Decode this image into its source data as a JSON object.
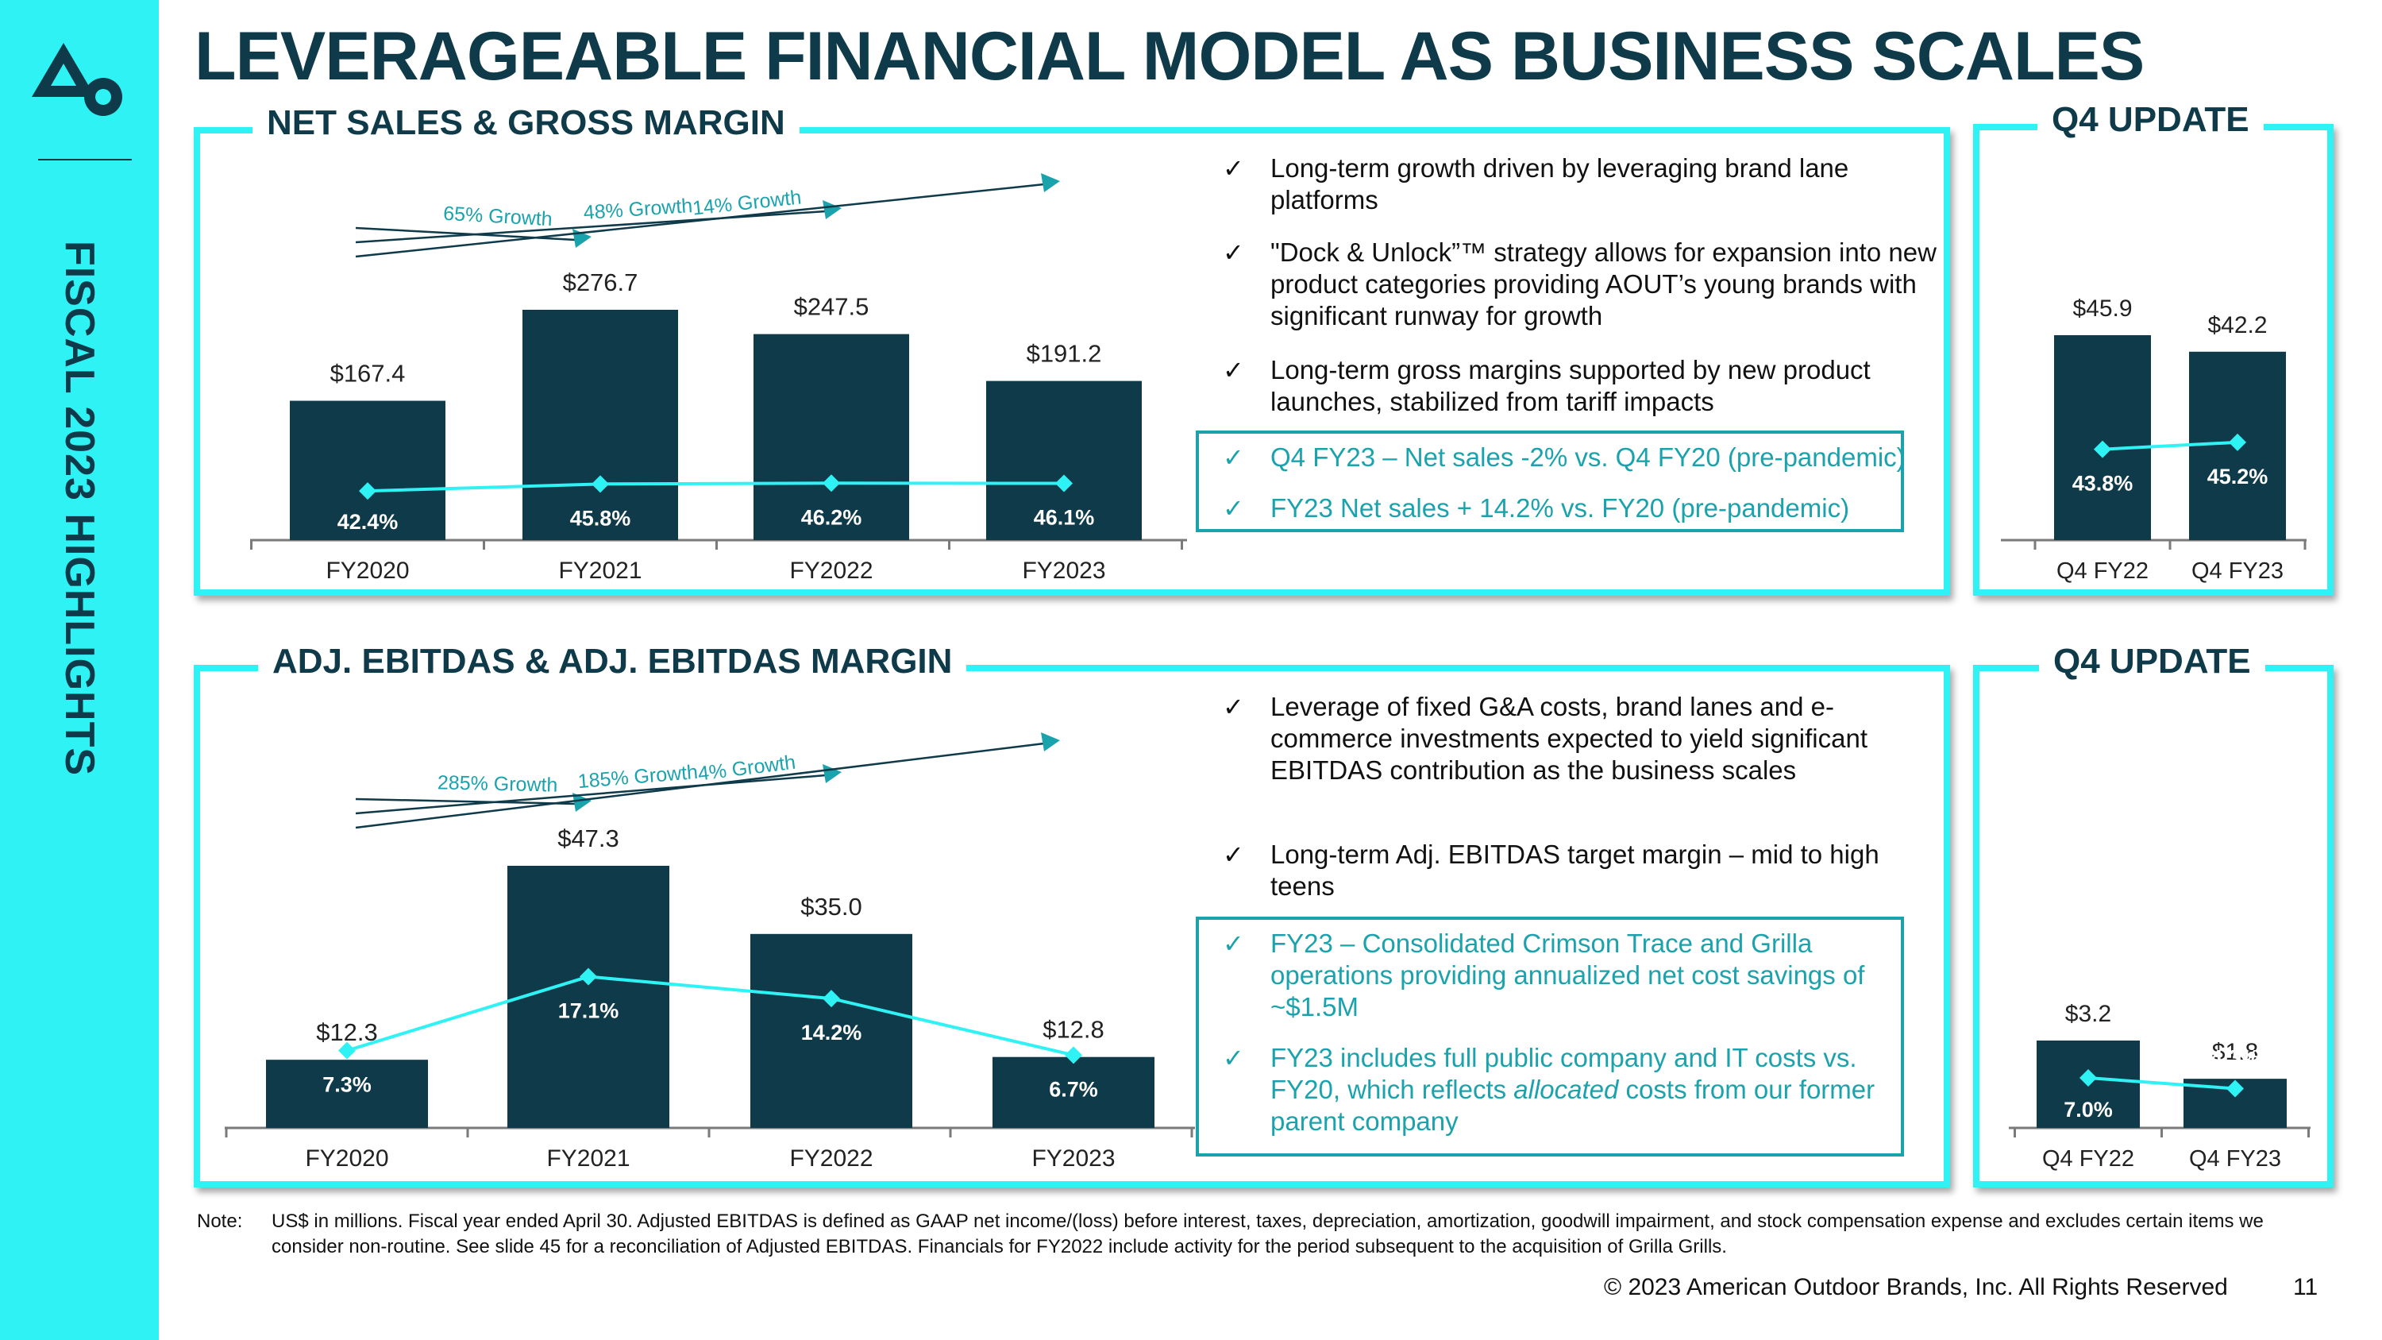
{
  "title": "LEVERAGEABLE FINANCIAL MODEL AS BUSINESS SCALES",
  "sidebar_title": "FISCAL 2023 HIGHLIGHTS",
  "colors": {
    "cyan": "#2ff2f5",
    "navy": "#0e3a4a",
    "teal": "#1aa3ad"
  },
  "panels": {
    "net_sales": "NET SALES & GROSS MARGIN",
    "ebitdas": "ADJ. EBITDAS & ADJ. EBITDAS MARGIN",
    "q4_top": "Q4 UPDATE",
    "q4_bottom": "Q4 UPDATE"
  },
  "bullets_top": [
    "Long-term growth driven by leveraging brand lane platforms",
    "\"Dock & Unlock”™ strategy allows for expansion into new product categories providing AOUT’s young brands with significant runway for growth",
    "Long-term gross margins supported by new product launches, stabilized from tariff impacts"
  ],
  "callout_top": [
    "Q4 FY23 – Net sales -2% vs. Q4 FY20 (pre-pandemic)",
    "FY23 Net sales + 14.2% vs. FY20 (pre-pandemic)"
  ],
  "bullets_bottom": [
    "Leverage of fixed G&A costs, brand lanes and e-commerce investments expected to yield significant EBITDAS contribution as the business scales",
    "Long-term Adj. EBITDAS target margin – mid to high teens"
  ],
  "callout_bottom": [
    "FY23 – Consolidated Crimson Trace and Grilla operations providing annualized net cost savings of ~$1.5M",
    "FY23 includes full public company and IT costs vs. FY20, which reflects allocated costs from our former parent company"
  ],
  "note_label": "Note:",
  "note_text": "US$ in millions. Fiscal year ended April 30. Adjusted EBITDAS is defined as GAAP net income/(loss) before interest, taxes, depreciation, amortization, goodwill impairment, and stock compensation expense and excludes certain items we consider non-routine. See slide 45 for a reconciliation of Adjusted EBITDAS. Financials for FY2022 include activity for the period subsequent to the acquisition of Grilla Grills.",
  "copyright": "© 2023 American Outdoor Brands, Inc. All Rights Reserved",
  "page_number": "11",
  "chart_data": [
    {
      "type": "bar",
      "id": "net_sales",
      "title": "NET SALES & GROSS MARGIN",
      "categories": [
        "FY2020",
        "FY2021",
        "FY2022",
        "FY2023"
      ],
      "series": [
        {
          "name": "Net sales",
          "values": [
            167.4,
            276.7,
            247.5,
            191.2
          ],
          "labels": [
            "$167.4",
            "$276.7",
            "$247.5",
            "$191.2"
          ]
        },
        {
          "name": "Gross margin",
          "type": "line",
          "values": [
            42.4,
            45.8,
            46.2,
            46.1
          ],
          "labels": [
            "42.4%",
            "45.8%",
            "46.2%",
            "46.1%"
          ]
        }
      ],
      "growth": [
        "65% Growth",
        "48% Growth",
        "14% Growth"
      ]
    },
    {
      "type": "bar",
      "id": "q4_net_sales",
      "title": "Q4 UPDATE",
      "categories": [
        "Q4 FY22",
        "Q4 FY23"
      ],
      "series": [
        {
          "name": "Net sales",
          "values": [
            45.9,
            42.2
          ],
          "labels": [
            "$45.9",
            "$42.2"
          ]
        },
        {
          "name": "Gross margin",
          "type": "line",
          "values": [
            43.8,
            45.2
          ],
          "labels": [
            "43.8%",
            "45.2%"
          ]
        }
      ]
    },
    {
      "type": "bar",
      "id": "ebitdas",
      "title": "ADJ. EBITDAS & ADJ. EBITDAS MARGIN",
      "categories": [
        "FY2020",
        "FY2021",
        "FY2022",
        "FY2023"
      ],
      "series": [
        {
          "name": "Adj. EBITDAS",
          "values": [
            12.3,
            47.3,
            35.0,
            12.8
          ],
          "labels": [
            "$12.3",
            "$47.3",
            "$35.0",
            "$12.8"
          ]
        },
        {
          "name": "Adj. EBITDAS margin",
          "type": "line",
          "values": [
            7.3,
            17.1,
            14.2,
            6.7
          ],
          "labels": [
            "7.3%",
            "17.1%",
            "14.2%",
            "6.7%"
          ]
        }
      ],
      "growth": [
        "285% Growth",
        "185% Growth",
        "4% Growth"
      ]
    },
    {
      "type": "bar",
      "id": "q4_ebitdas",
      "title": "Q4 UPDATE",
      "categories": [
        "Q4 FY22",
        "Q4 FY23"
      ],
      "series": [
        {
          "name": "Adj. EBITDAS",
          "values": [
            3.2,
            1.8
          ],
          "labels": [
            "$3.2",
            "$1.8"
          ]
        },
        {
          "name": "Adj. EBITDAS margin",
          "type": "line",
          "values": [
            7.0,
            4.3
          ],
          "labels": [
            "7.0%",
            "4.3%"
          ]
        }
      ]
    }
  ]
}
